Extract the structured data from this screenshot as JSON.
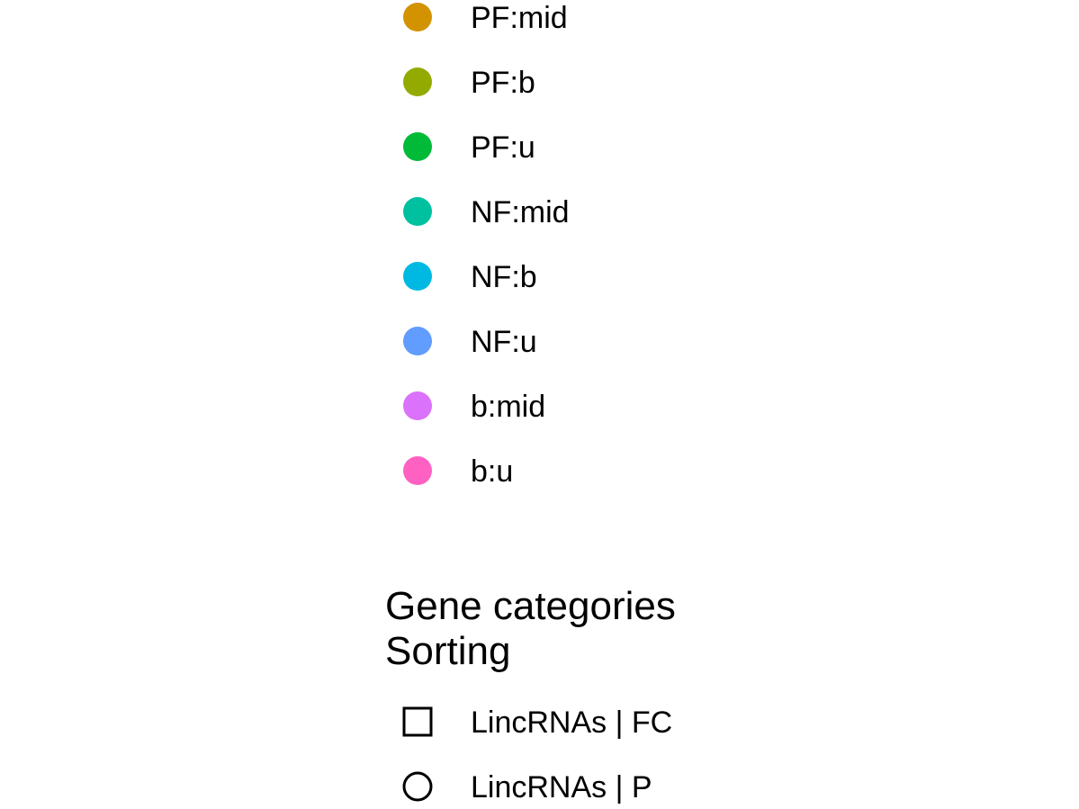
{
  "chart_data": {
    "type": "scatter",
    "legends": [
      {
        "name": "color",
        "title": "",
        "entries": [
          {
            "label": "PF:mid",
            "color": "#D39200",
            "shape": "circle-filled"
          },
          {
            "label": "PF:b",
            "color": "#93AA00",
            "shape": "circle-filled"
          },
          {
            "label": "PF:u",
            "color": "#00BA38",
            "shape": "circle-filled"
          },
          {
            "label": "NF:mid",
            "color": "#00C19F",
            "shape": "circle-filled"
          },
          {
            "label": "NF:b",
            "color": "#00B9E3",
            "shape": "circle-filled"
          },
          {
            "label": "NF:u",
            "color": "#619CFF",
            "shape": "circle-filled"
          },
          {
            "label": "b:mid",
            "color": "#DB72FB",
            "shape": "circle-filled"
          },
          {
            "label": "b:u",
            "color": "#FF61C3",
            "shape": "circle-filled"
          }
        ]
      },
      {
        "name": "shape",
        "title_lines": [
          "Gene categories",
          "Sorting"
        ],
        "entries": [
          {
            "label": "LincRNAs | FC",
            "color": "#000000",
            "shape": "square-open"
          },
          {
            "label": "LincRNAs | P",
            "color": "#000000",
            "shape": "circle-open"
          }
        ]
      }
    ]
  }
}
